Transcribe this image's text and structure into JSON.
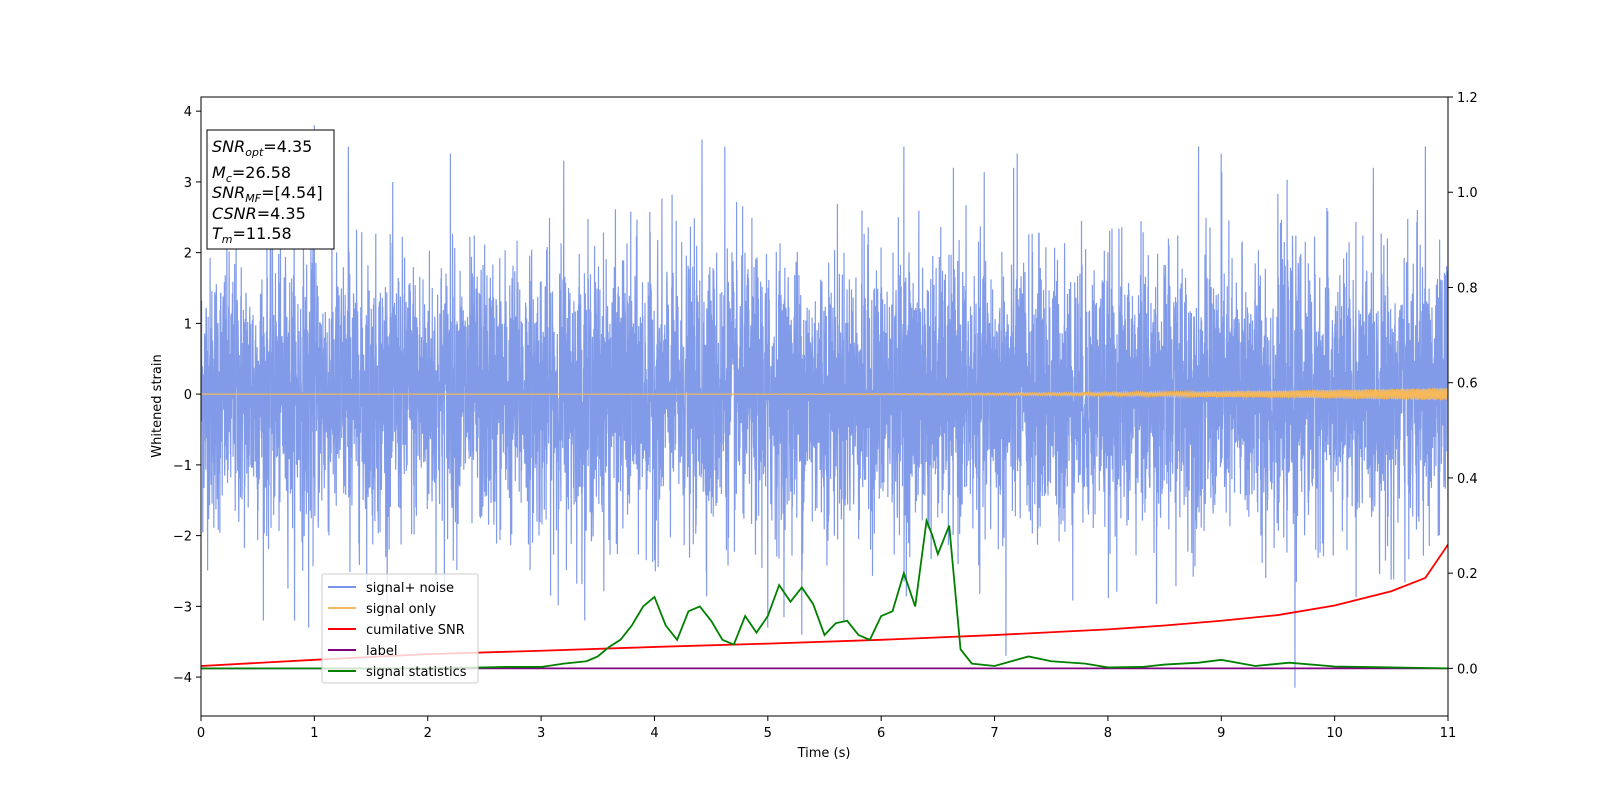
{
  "chart_data": {
    "type": "line",
    "title": "",
    "xlabel": "Time (s)",
    "ylabel": "Whitened strain",
    "xlim": [
      0,
      11
    ],
    "ylim_left": [
      -4.55,
      4.2
    ],
    "ylim_right": [
      -0.1,
      1.2
    ],
    "xticks": [
      "0",
      "1",
      "2",
      "3",
      "4",
      "5",
      "6",
      "7",
      "8",
      "9",
      "10",
      "11"
    ],
    "yticks_left": [
      "−4",
      "−3",
      "−2",
      "−1",
      "0",
      "1",
      "2",
      "3",
      "4"
    ],
    "yticks_right": [
      "0.0",
      "0.2",
      "0.4",
      "0.6",
      "0.8",
      "1.0",
      "1.2"
    ],
    "grid": false,
    "legend_position": "lower-left",
    "annotation": {
      "snr_opt": "4.35",
      "mc": "26.58",
      "snr_mf": "[4.54]",
      "csnr": "4.35",
      "tm": "11.58"
    },
    "series": [
      {
        "name": "signal+ noise",
        "axis": "left",
        "color": "#7b96e8",
        "noise_sigma": 0.95,
        "spikes": [
          [
            1.0,
            3.8
          ],
          [
            4.42,
            3.6
          ],
          [
            4.62,
            3.5
          ],
          [
            6.2,
            3.5
          ],
          [
            9.65,
            -4.15
          ],
          [
            7.1,
            -3.7
          ],
          [
            5.0,
            -3.3
          ],
          [
            5.3,
            -3.4
          ],
          [
            0.95,
            -3.3
          ],
          [
            10.8,
            3.5
          ],
          [
            7.2,
            3.4
          ],
          [
            8.8,
            3.5
          ],
          [
            9.0,
            3.4
          ],
          [
            2.2,
            3.4
          ],
          [
            3.2,
            3.3
          ],
          [
            1.3,
            3.5
          ]
        ]
      },
      {
        "name": "signal only",
        "axis": "left",
        "color": "#f5b85a",
        "amplitude_start": 0.0,
        "amplitude_end": 0.09
      },
      {
        "name": "cumilative SNR",
        "axis": "right",
        "color": "#ff0000",
        "x": [
          0,
          1,
          2,
          3,
          4,
          5,
          6,
          7,
          8,
          8.5,
          9,
          9.5,
          10,
          10.5,
          10.8,
          11
        ],
        "values": [
          0.005,
          0.018,
          0.03,
          0.037,
          0.045,
          0.052,
          0.06,
          0.07,
          0.082,
          0.09,
          0.1,
          0.112,
          0.132,
          0.162,
          0.19,
          0.26
        ]
      },
      {
        "name": "label",
        "axis": "right",
        "color": "#800080",
        "x": [
          0,
          11
        ],
        "values": [
          0.0,
          0.0
        ]
      },
      {
        "name": "signal statistics",
        "axis": "right",
        "color": "#008000",
        "x": [
          0,
          1,
          2,
          2.5,
          2.7,
          3.0,
          3.2,
          3.4,
          3.5,
          3.6,
          3.7,
          3.8,
          3.9,
          4.0,
          4.1,
          4.2,
          4.3,
          4.4,
          4.5,
          4.6,
          4.7,
          4.8,
          4.9,
          5.0,
          5.1,
          5.2,
          5.3,
          5.4,
          5.5,
          5.6,
          5.7,
          5.8,
          5.9,
          6.0,
          6.1,
          6.2,
          6.3,
          6.4,
          6.45,
          6.5,
          6.6,
          6.7,
          6.8,
          7.0,
          7.3,
          7.5,
          7.8,
          8.0,
          8.3,
          8.5,
          8.8,
          9.0,
          9.3,
          9.6,
          10.0,
          10.5,
          11.0
        ],
        "values": [
          0.0,
          0.0,
          0.0,
          0.002,
          0.003,
          0.003,
          0.01,
          0.015,
          0.025,
          0.045,
          0.06,
          0.09,
          0.13,
          0.15,
          0.09,
          0.06,
          0.12,
          0.13,
          0.1,
          0.06,
          0.05,
          0.11,
          0.075,
          0.11,
          0.175,
          0.14,
          0.17,
          0.135,
          0.07,
          0.095,
          0.1,
          0.07,
          0.06,
          0.11,
          0.12,
          0.2,
          0.13,
          0.31,
          0.28,
          0.24,
          0.3,
          0.04,
          0.01,
          0.005,
          0.025,
          0.015,
          0.01,
          0.002,
          0.003,
          0.008,
          0.012,
          0.018,
          0.005,
          0.012,
          0.004,
          0.002,
          0.0
        ]
      }
    ]
  }
}
